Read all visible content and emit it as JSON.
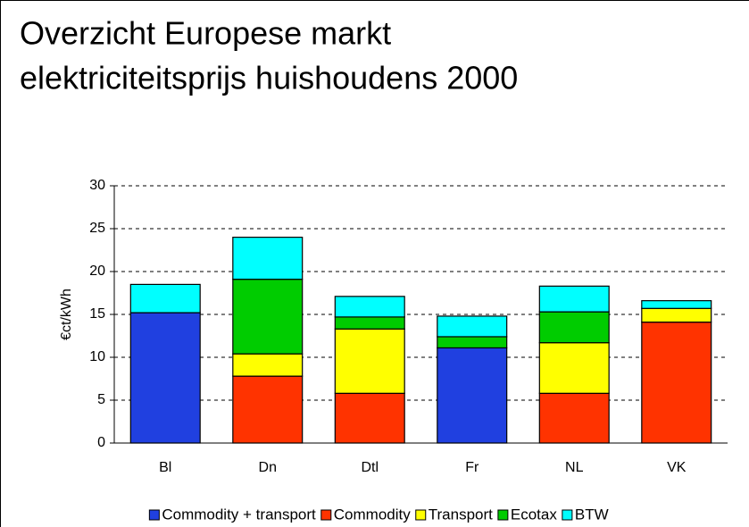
{
  "chart_data": {
    "type": "stacked-bar",
    "title": [
      "Overzicht Europese markt",
      "elektriciteitsprijs huishoudens 2000"
    ],
    "ylabel": "€ct/kWh",
    "categories": [
      "Bl",
      "Dn",
      "Dtl",
      "Fr",
      "NL",
      "VK"
    ],
    "series": [
      {
        "name": "Commodity + transport",
        "color": "#2040e0",
        "values": [
          15.2,
          null,
          null,
          11.1,
          null,
          null
        ]
      },
      {
        "name": "Commodity",
        "color": "#ff3300",
        "values": [
          null,
          7.8,
          5.8,
          null,
          5.8,
          14.1
        ]
      },
      {
        "name": "Transport",
        "color": "#ffff00",
        "values": [
          null,
          2.6,
          7.5,
          null,
          5.9,
          1.6
        ]
      },
      {
        "name": "Ecotax",
        "color": "#00cc00",
        "values": [
          null,
          8.7,
          1.4,
          1.3,
          3.6,
          null
        ]
      },
      {
        "name": "BTW",
        "color": "#00ffff",
        "values": [
          3.3,
          4.9,
          2.4,
          2.4,
          3.0,
          0.9
        ]
      }
    ],
    "ylim": [
      0,
      30
    ],
    "yticks": [
      0,
      5,
      10,
      15,
      20,
      25,
      30
    ],
    "grid": true
  }
}
